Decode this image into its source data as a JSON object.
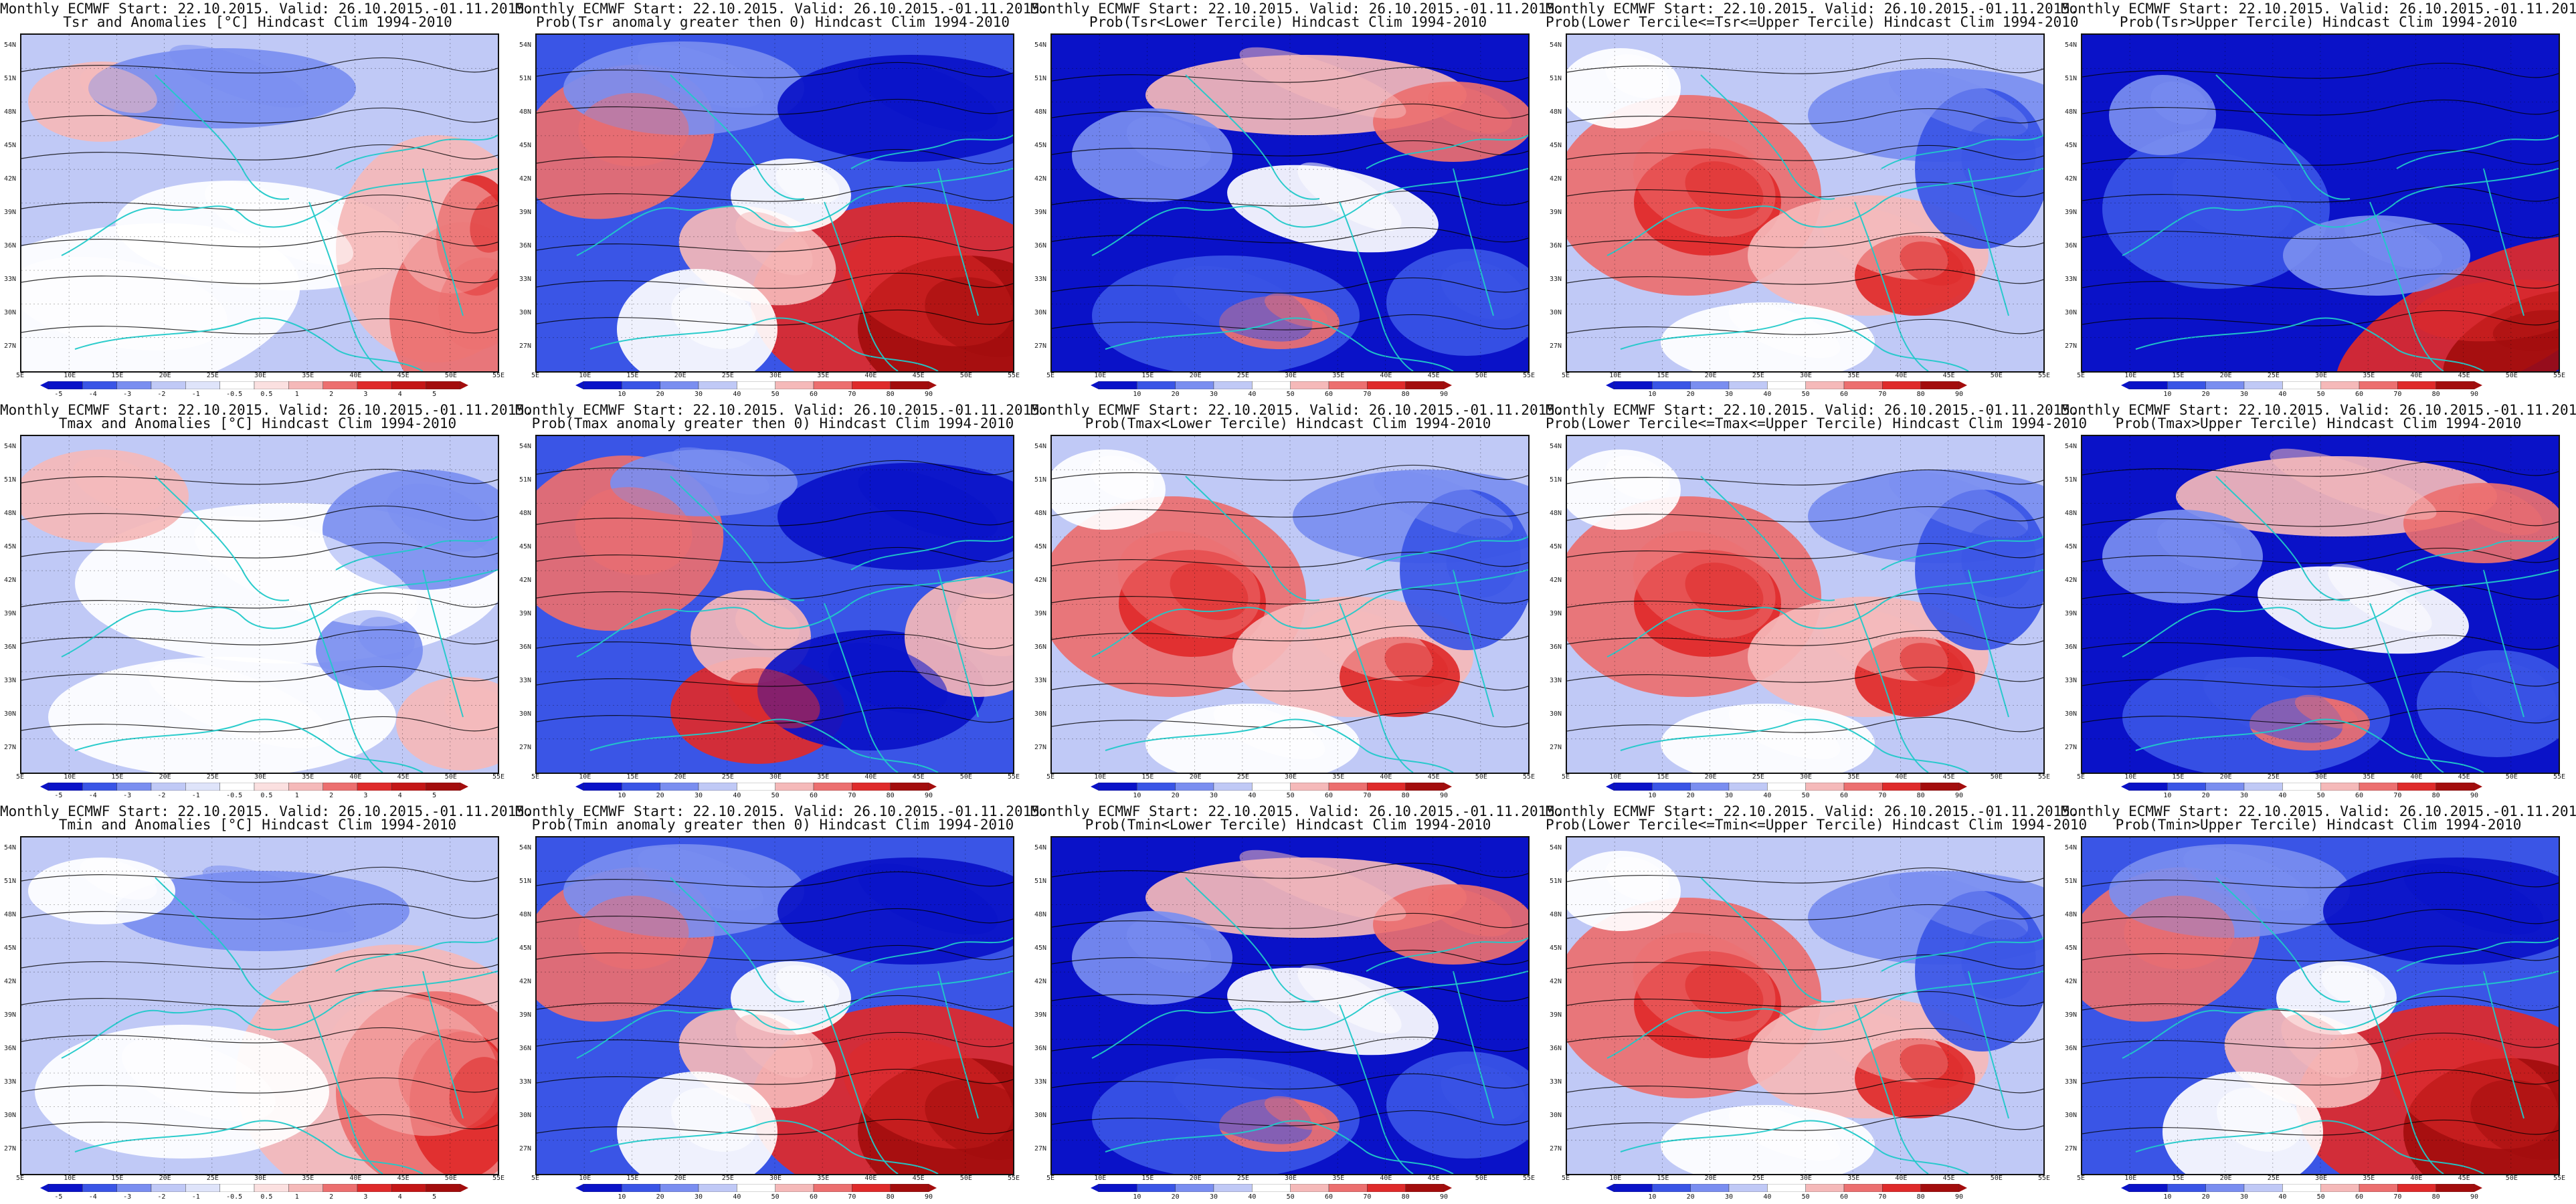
{
  "colors": {
    "deep_blue": "#0a12c8",
    "blue": "#3a55e6",
    "mid_blue": "#7a8ef0",
    "light_blue": "#c0c9f6",
    "white": "#ffffff",
    "light_red": "#f5b9b9",
    "mid_red": "#ec6f6f",
    "red": "#df2a2a",
    "dark_red": "#a30d0d",
    "contour": "#000000",
    "coast": "#21c9c9"
  },
  "lat_labels": [
    "54N",
    "51N",
    "48N",
    "45N",
    "42N",
    "39N",
    "36N",
    "33N",
    "30N",
    "27N"
  ],
  "lon_labels": [
    "5E",
    "10E",
    "15E",
    "20E",
    "25E",
    "30E",
    "35E",
    "40E",
    "45E",
    "50E",
    "55E"
  ],
  "anomaly_scale": [
    "-5",
    "-4",
    "-3",
    "-2",
    "-1",
    "-0.5",
    "0.5",
    "1",
    "2",
    "3",
    "4",
    "5"
  ],
  "prob_scale": [
    "10",
    "20",
    "30",
    "40",
    "50",
    "60",
    "70",
    "80",
    "90"
  ],
  "panels": [
    {
      "title1": "Monthly ECMWF Start: 22.10.2015. Valid: 26.10.2015.-01.11.2015.",
      "title2": "Tsr and Anomalies [°C] Hindcast Clim 1994-2010",
      "scale": "anomaly",
      "field": "anom_mix"
    },
    {
      "title1": "Monthly ECMWF Start: 22.10.2015. Valid: 26.10.2015.-01.11.2015.",
      "title2": "Prob(Tsr anomaly greater then 0) Hindcast Clim 1994-2010",
      "scale": "prob",
      "field": "prob_redeast"
    },
    {
      "title1": "Monthly ECMWF Start: 22.10.2015. Valid: 26.10.2015.-01.11.2015.",
      "title2": "Prob(Tsr<Lower Tercile) Hindcast Clim 1994-2010",
      "scale": "prob",
      "field": "prob_blue"
    },
    {
      "title1": "Monthly ECMWF Start: 22.10.2015. Valid: 26.10.2015.-01.11.2015.",
      "title2": "Prob(Lower Tercile<=Tsr<=Upper Tercile) Hindcast Clim 1994-2010",
      "scale": "prob",
      "field": "prob_mixred"
    },
    {
      "title1": "Monthly ECMWF Start: 22.10.2015. Valid: 26.10.2015.-01.11.2015.",
      "title2": "Prob(Tsr>Upper Tercile) Hindcast Clim 1994-2010",
      "scale": "prob",
      "field": "prob_bluese"
    },
    {
      "title1": "Monthly ECMWF Start: 22.10.2015. Valid: 26.10.2015.-01.11.2015.",
      "title2": "Tmax and Anomalies [°C] Hindcast Clim 1994-2010",
      "scale": "anomaly",
      "field": "anom_blue"
    },
    {
      "title1": "Monthly ECMWF Start: 22.10.2015. Valid: 26.10.2015.-01.11.2015.",
      "title2": "Prob(Tmax anomaly greater then 0) Hindcast Clim 1994-2010",
      "scale": "prob",
      "field": "prob_mixblue"
    },
    {
      "title1": "Monthly ECMWF Start: 22.10.2015. Valid: 26.10.2015.-01.11.2015.",
      "title2": "Prob(Tmax<Lower Tercile) Hindcast Clim 1994-2010",
      "scale": "prob",
      "field": "prob_mixred"
    },
    {
      "title1": "Monthly ECMWF Start: 22.10.2015. Valid: 26.10.2015.-01.11.2015.",
      "title2": "Prob(Lower Tercile<=Tmax<=Upper Tercile) Hindcast Clim 1994-2010",
      "scale": "prob",
      "field": "prob_mixred"
    },
    {
      "title1": "Monthly ECMWF Start: 22.10.2015. Valid: 26.10.2015.-01.11.2015.",
      "title2": "Prob(Tmax>Upper Tercile) Hindcast Clim 1994-2010",
      "scale": "prob",
      "field": "prob_blue"
    },
    {
      "title1": "Monthly ECMWF Start: 22.10.2015. Valid: 26.10.2015.-01.11.2015.",
      "title2": "Tmin and Anomalies [°C] Hindcast Clim 1994-2010",
      "scale": "anomaly",
      "field": "anom_redeast"
    },
    {
      "title1": "Monthly ECMWF Start: 22.10.2015. Valid: 26.10.2015.-01.11.2015.",
      "title2": "Prob(Tmin anomaly greater then 0) Hindcast Clim 1994-2010",
      "scale": "prob",
      "field": "prob_redeast"
    },
    {
      "title1": "Monthly ECMWF Start: 22.10.2015. Valid: 26.10.2015.-01.11.2015.",
      "title2": "Prob(Tmin<Lower Tercile) Hindcast Clim 1994-2010",
      "scale": "prob",
      "field": "prob_blue"
    },
    {
      "title1": "Monthly ECMWF Start: 22.10.2015. Valid: 26.10.2015.-01.11.2015.",
      "title2": "Prob(Lower Tercile<=Tmin<=Upper Tercile) Hindcast Clim 1994-2010",
      "scale": "prob",
      "field": "prob_mixred"
    },
    {
      "title1": "Monthly ECMWF Start: 22.10.2015. Valid: 26.10.2015.-01.11.2015.",
      "title2": "Prob(Tmin>Upper Tercile) Hindcast Clim 1994-2010",
      "scale": "prob",
      "field": "prob_redeast"
    }
  ]
}
